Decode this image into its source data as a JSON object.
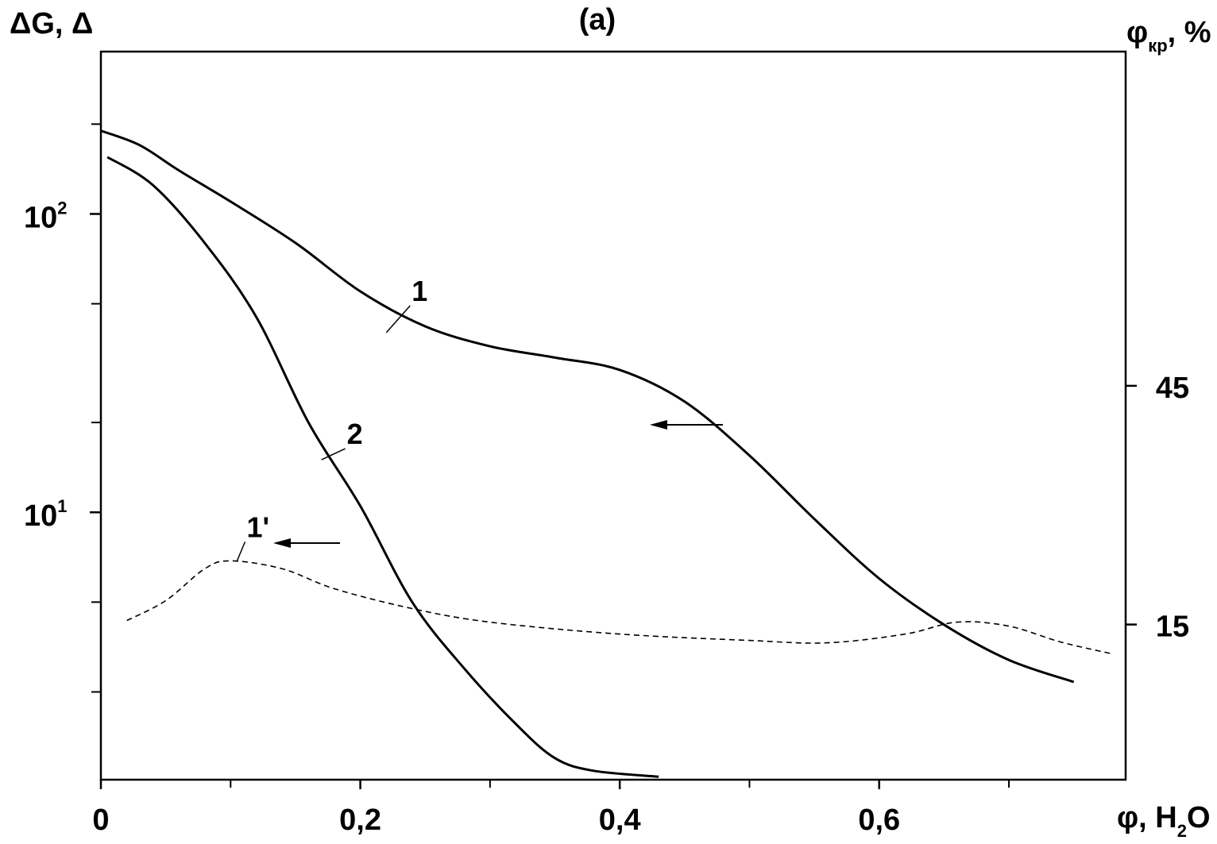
{
  "chart_data": {
    "type": "line",
    "title": "(a)",
    "y_left_label_main": "ΔG, Δ",
    "y_right_label_base": "φ",
    "y_right_label_sub": "кр",
    "y_right_label_tail": ", %",
    "x_label_base": "φ, H",
    "x_label_sub": "2",
    "x_label_tail": "O",
    "x_range": [
      0,
      0.79
    ],
    "x_ticks": [
      {
        "value": 0,
        "label": "0"
      },
      {
        "value": 0.2,
        "label": "0,2"
      },
      {
        "value": 0.4,
        "label": "0,4"
      },
      {
        "value": 0.6,
        "label": "0,6"
      }
    ],
    "x_minor_ticks": [
      0.1,
      0.3,
      0.5,
      0.7
    ],
    "y_left_scale": "log",
    "y_left_range": [
      1.27,
      350
    ],
    "y_left_ticks": [
      {
        "value": 10,
        "base": "10",
        "exp": "1"
      },
      {
        "value": 100,
        "base": "10",
        "exp": "2"
      }
    ],
    "y_left_minor_ticks": [
      2.5,
      5,
      20,
      50,
      200
    ],
    "y_right_range": [
      -4.5,
      87
    ],
    "y_right_ticks": [
      {
        "value": 15,
        "label": "15"
      },
      {
        "value": 45,
        "label": "45"
      }
    ],
    "grid": false,
    "legend": "none",
    "series": [
      {
        "name": "1",
        "axis": "left",
        "style": "solid",
        "label_point": [
          0.22,
          40
        ],
        "points": [
          [
            0.0,
            190
          ],
          [
            0.03,
            170
          ],
          [
            0.06,
            140
          ],
          [
            0.1,
            110
          ],
          [
            0.15,
            80
          ],
          [
            0.2,
            55
          ],
          [
            0.25,
            42
          ],
          [
            0.3,
            36
          ],
          [
            0.35,
            33
          ],
          [
            0.4,
            30
          ],
          [
            0.45,
            23.5
          ],
          [
            0.5,
            15.5
          ],
          [
            0.55,
            9.5
          ],
          [
            0.6,
            6
          ],
          [
            0.65,
            4.2
          ],
          [
            0.7,
            3.2
          ],
          [
            0.75,
            2.7
          ]
        ]
      },
      {
        "name": "2",
        "axis": "left",
        "style": "solid",
        "label_point": [
          0.17,
          15
        ],
        "points": [
          [
            0.005,
            155
          ],
          [
            0.04,
            125
          ],
          [
            0.08,
            80
          ],
          [
            0.12,
            45
          ],
          [
            0.16,
            20
          ],
          [
            0.2,
            10.5
          ],
          [
            0.24,
            5
          ],
          [
            0.28,
            3
          ],
          [
            0.32,
            1.95
          ],
          [
            0.35,
            1.5
          ],
          [
            0.38,
            1.36
          ],
          [
            0.43,
            1.3
          ]
        ]
      },
      {
        "name": "1'",
        "axis": "right",
        "style": "dashed",
        "label_point": [
          0.105,
          23
        ],
        "points": [
          [
            0.02,
            15.5
          ],
          [
            0.05,
            18
          ],
          [
            0.08,
            22
          ],
          [
            0.1,
            23
          ],
          [
            0.14,
            22
          ],
          [
            0.18,
            19.5
          ],
          [
            0.24,
            17
          ],
          [
            0.3,
            15.3
          ],
          [
            0.4,
            13.8
          ],
          [
            0.5,
            13
          ],
          [
            0.56,
            12.7
          ],
          [
            0.62,
            13.8
          ],
          [
            0.66,
            15.3
          ],
          [
            0.7,
            14.8
          ],
          [
            0.74,
            12.8
          ],
          [
            0.78,
            11.3
          ]
        ]
      }
    ]
  }
}
